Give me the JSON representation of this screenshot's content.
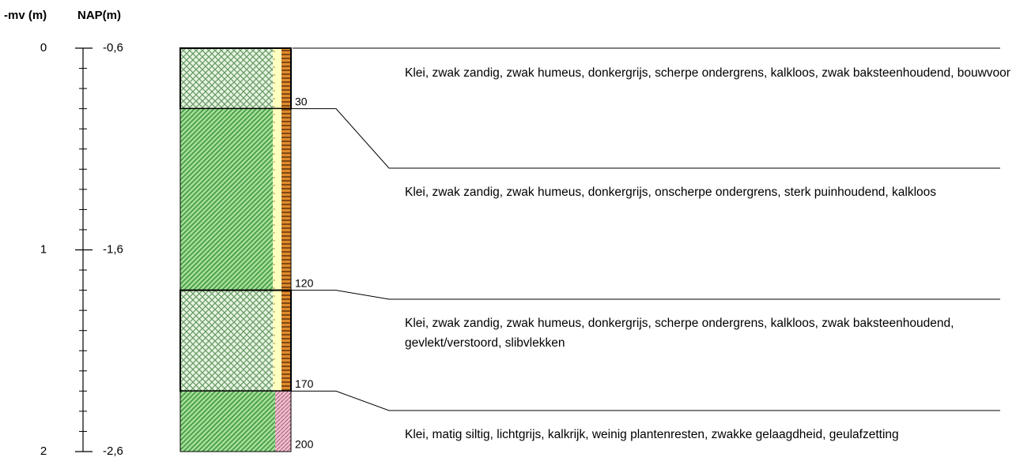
{
  "header": {
    "mv": "-mv (m)",
    "nap": "NAP(m)"
  },
  "axis": [
    {
      "mv": 0,
      "nap": "-0,6"
    },
    {
      "mv": 1,
      "nap": "-1,6"
    },
    {
      "mv": 2,
      "nap": "-2,6"
    }
  ],
  "layers": [
    {
      "bottom": 30,
      "description": "Klei, zwak zandig, zwak humeus, donkergrijs, scherpe ondergrens, kalkloos, zwak baksteenhoudend, bouwvoor"
    },
    {
      "bottom": 120,
      "description": "Klei, zwak zandig, zwak humeus, donkergrijs, onscherpe ondergrens, sterk puinhoudend, kalkloos"
    },
    {
      "bottom": 170,
      "description": "Klei, zwak zandig, zwak humeus, donkergrijs, scherpe ondergrens, kalkloos, zwak baksteenhoudend, gevlekt/verstoord, slibvlekken"
    },
    {
      "bottom": 200,
      "description": "Klei, matig siltig, lichtgrijs, kalkrijk, weinig plantenresten, zwakke gelaagdheid, geulafzetting"
    }
  ]
}
